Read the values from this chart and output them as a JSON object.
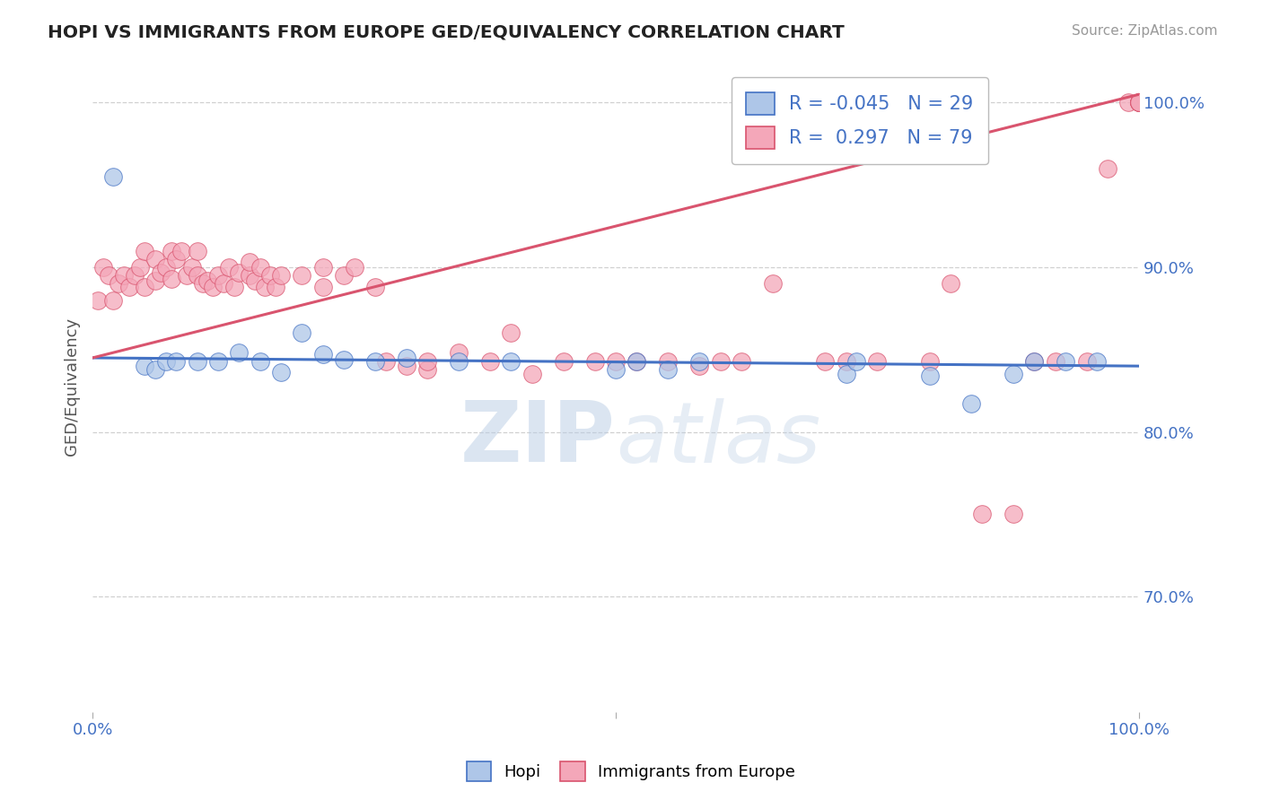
{
  "title": "HOPI VS IMMIGRANTS FROM EUROPE GED/EQUIVALENCY CORRELATION CHART",
  "source_text": "Source: ZipAtlas.com",
  "ylabel": "GED/Equivalency",
  "xlim": [
    0.0,
    1.0
  ],
  "ylim": [
    0.63,
    1.025
  ],
  "right_ytick_labels": [
    "70.0%",
    "80.0%",
    "90.0%",
    "100.0%"
  ],
  "right_ytick_values": [
    0.7,
    0.8,
    0.9,
    1.0
  ],
  "hopi_R": -0.045,
  "hopi_N": 29,
  "immig_R": 0.297,
  "immig_N": 79,
  "hopi_color": "#aec6e8",
  "hopi_line_color": "#4472c4",
  "immig_color": "#f4a7b9",
  "immig_line_color": "#d9546e",
  "watermark_color": "#ccdaee",
  "background_color": "#ffffff",
  "grid_color": "#d0d0d0",
  "hopi_line_x0": 0.0,
  "hopi_line_x1": 1.0,
  "hopi_line_y0": 0.845,
  "hopi_line_y1": 0.84,
  "immig_line_x0": 0.0,
  "immig_line_x1": 1.0,
  "immig_line_y0": 0.845,
  "immig_line_y1": 1.005,
  "hopi_scatter_x": [
    0.02,
    0.05,
    0.06,
    0.07,
    0.08,
    0.1,
    0.12,
    0.14,
    0.16,
    0.18,
    0.2,
    0.22,
    0.24,
    0.27,
    0.3,
    0.35,
    0.4,
    0.5,
    0.52,
    0.55,
    0.58,
    0.72,
    0.73,
    0.8,
    0.84,
    0.88,
    0.9,
    0.93,
    0.96
  ],
  "hopi_scatter_y": [
    0.955,
    0.84,
    0.838,
    0.843,
    0.843,
    0.843,
    0.843,
    0.848,
    0.843,
    0.836,
    0.86,
    0.847,
    0.844,
    0.843,
    0.845,
    0.843,
    0.843,
    0.838,
    0.843,
    0.838,
    0.843,
    0.835,
    0.843,
    0.834,
    0.817,
    0.835,
    0.843,
    0.843,
    0.843
  ],
  "immig_scatter_x": [
    0.005,
    0.01,
    0.015,
    0.02,
    0.025,
    0.03,
    0.035,
    0.04,
    0.045,
    0.05,
    0.05,
    0.06,
    0.06,
    0.065,
    0.07,
    0.075,
    0.075,
    0.08,
    0.085,
    0.09,
    0.095,
    0.1,
    0.1,
    0.105,
    0.11,
    0.115,
    0.12,
    0.125,
    0.13,
    0.135,
    0.14,
    0.15,
    0.15,
    0.155,
    0.16,
    0.165,
    0.17,
    0.175,
    0.18,
    0.2,
    0.22,
    0.22,
    0.24,
    0.25,
    0.27,
    0.28,
    0.3,
    0.32,
    0.32,
    0.35,
    0.38,
    0.4,
    0.42,
    0.45,
    0.48,
    0.5,
    0.52,
    0.55,
    0.58,
    0.6,
    0.62,
    0.65,
    0.7,
    0.72,
    0.75,
    0.8,
    0.82,
    0.85,
    0.88,
    0.9,
    0.92,
    0.95,
    0.97,
    0.99,
    1.0,
    1.0,
    1.0,
    1.0,
    1.0
  ],
  "immig_scatter_y": [
    0.88,
    0.9,
    0.895,
    0.88,
    0.89,
    0.895,
    0.888,
    0.895,
    0.9,
    0.888,
    0.91,
    0.892,
    0.905,
    0.897,
    0.9,
    0.91,
    0.893,
    0.905,
    0.91,
    0.895,
    0.9,
    0.895,
    0.91,
    0.89,
    0.892,
    0.888,
    0.895,
    0.89,
    0.9,
    0.888,
    0.897,
    0.895,
    0.903,
    0.892,
    0.9,
    0.888,
    0.895,
    0.888,
    0.895,
    0.895,
    0.888,
    0.9,
    0.895,
    0.9,
    0.888,
    0.843,
    0.84,
    0.838,
    0.843,
    0.848,
    0.843,
    0.86,
    0.835,
    0.843,
    0.843,
    0.843,
    0.843,
    0.843,
    0.84,
    0.843,
    0.843,
    0.89,
    0.843,
    0.843,
    0.843,
    0.843,
    0.89,
    0.75,
    0.75,
    0.843,
    0.843,
    0.843,
    0.96,
    1.0,
    1.0,
    1.0,
    1.0,
    1.0,
    1.0
  ]
}
